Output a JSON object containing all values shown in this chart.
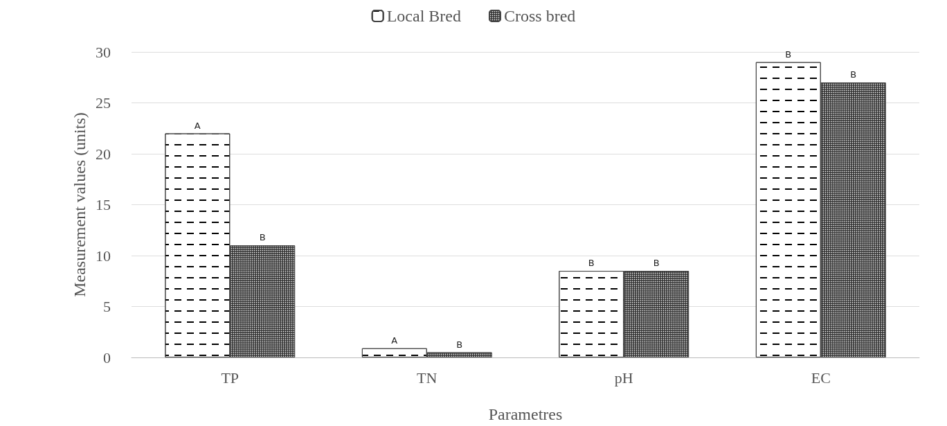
{
  "chart_data": {
    "type": "bar",
    "xlabel": "Parametres",
    "ylabel": "Measurement values (units)",
    "categories": [
      "TP",
      "TN",
      "pH",
      "EC"
    ],
    "series": [
      {
        "name": "Local Bred",
        "color": "#ffffff",
        "values": [
          22,
          0.9,
          8.5,
          29
        ],
        "value_labels": [
          "A",
          "A",
          "B",
          "B"
        ]
      },
      {
        "name": "Cross bred",
        "color": "#3a3a3a",
        "values": [
          11,
          0.5,
          8.5,
          27
        ],
        "value_labels": [
          "B",
          "B",
          "B",
          "B"
        ]
      }
    ],
    "ylim": [
      0,
      30
    ],
    "yticks": [
      0,
      5,
      10,
      15,
      20,
      25,
      30
    ],
    "grid": "y",
    "legend": "top"
  }
}
